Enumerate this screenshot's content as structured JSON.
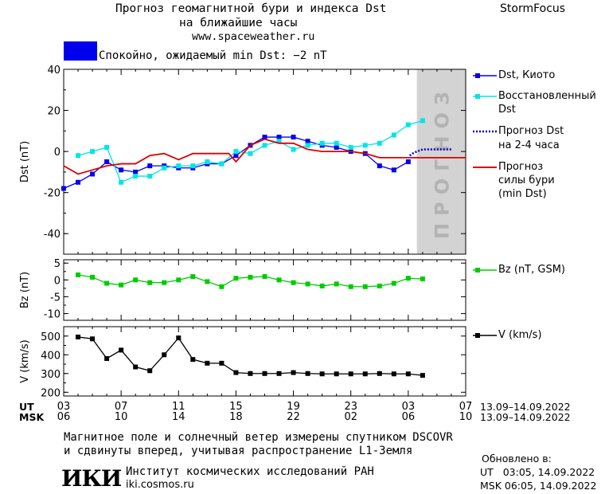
{
  "header": {
    "title_line1": "Прогноз геомагнитной бури и индекса Dst",
    "title_line2": "на ближайшие часы",
    "site": "www.spaceweather.ru",
    "brand": "StormFocus"
  },
  "status": {
    "text": "Спокойно, ожидаемый min Dst: −2 nT",
    "color": "#0000ee"
  },
  "forecast_label": "ПРОГНОЗ",
  "legend": {
    "dst_kyoto": "Dst, Киото",
    "restored_1": "Восстановленный",
    "restored_2": "Dst",
    "forecast_dst_1": "Прогноз Dst",
    "forecast_dst_2": "на 2-4 часа",
    "storm_1": "Прогноз",
    "storm_2": "силы бури",
    "storm_3": "(min Dst)",
    "bz": "Bz (nT, GSM)",
    "v": "V (km/s)"
  },
  "axis_time": {
    "ut_label": "UT",
    "msk_label": "MSK",
    "ut_ticks": [
      "03",
      "07",
      "11",
      "15",
      "19",
      "23",
      "03",
      "07"
    ],
    "msk_ticks": [
      "06",
      "10",
      "14",
      "18",
      "22",
      "02",
      "06",
      "10"
    ],
    "ut_range": "13.09–14.09.2022",
    "msk_range": "13.09–14.09.2022"
  },
  "footer": {
    "note_1": "Магнитное поле и солнечный ветер измерены спутником DSCOVR",
    "note_2": "и сдвинуты вперед, учитывая распространение L1-Земля",
    "logo": "ИКИ",
    "institute": "Институт космических исследований РАН",
    "institute_url": "iki.cosmos.ru",
    "updated_label": "Обновлено в:",
    "updated_ut": "UT   03:05, 14.09.2022",
    "updated_msk": "MSK 06:05, 14.09.2022"
  },
  "chart_data": [
    {
      "type": "line",
      "ylabel": "Dst (nT)",
      "ylim": [
        -50,
        40
      ],
      "yticks": [
        40,
        20,
        0,
        -20,
        -40
      ],
      "xlim": [
        3,
        31
      ],
      "forecast_region": [
        27.6,
        31
      ],
      "colors": {
        "kyoto": "#0000ee",
        "restored": "#00e5e5",
        "forecast": "#0000cc",
        "storm": "#dd0000"
      },
      "series": [
        {
          "name": "Dst, Киото",
          "x": [
            3,
            4,
            5,
            6,
            7,
            8,
            9,
            10,
            11,
            12,
            13,
            14,
            15,
            16,
            17,
            18,
            19,
            20,
            21,
            22,
            23,
            24,
            25,
            26,
            27
          ],
          "values": [
            -18,
            -15,
            -11,
            -5,
            -9,
            -10,
            -7,
            -7,
            -8,
            -8,
            -6,
            -6,
            -2,
            3,
            7,
            7,
            7,
            5,
            3,
            2,
            0,
            -1,
            -7,
            -9,
            -5
          ]
        },
        {
          "name": "Восстановленный Dst",
          "x": [
            4,
            5,
            6,
            7,
            8,
            9,
            10,
            11,
            12,
            13,
            14,
            15,
            16,
            17,
            18,
            19,
            20,
            21,
            22,
            23,
            24,
            25,
            26,
            27,
            28
          ],
          "values": [
            -2,
            0,
            2,
            -15,
            -12,
            -12,
            -8,
            -7,
            -7,
            -5,
            -6,
            0,
            -1,
            3,
            5,
            1,
            3,
            4,
            4,
            2,
            3,
            4,
            8,
            13,
            15
          ]
        },
        {
          "name": "Прогноз Dst на 2-4 часа",
          "x": [
            27.1,
            27.3,
            27.6,
            28,
            29,
            30
          ],
          "values": [
            -2,
            -1,
            0,
            1,
            1,
            1
          ]
        },
        {
          "name": "Прогноз силы бури (min Dst)",
          "x": [
            3,
            4,
            5,
            6,
            7,
            8,
            9,
            10,
            11,
            12,
            13,
            14,
            14.5,
            15,
            16,
            17,
            18,
            19,
            20,
            21,
            22,
            23,
            24,
            25,
            26,
            27,
            28,
            29,
            30,
            31
          ],
          "values": [
            -7,
            -11,
            -9,
            -7,
            -6,
            -6,
            -2,
            -1,
            -4,
            -1,
            -1,
            -1,
            -1,
            -5,
            3,
            6,
            4,
            4,
            1,
            0,
            0,
            0,
            -1,
            -3,
            -3,
            -3,
            -3,
            -3,
            -3,
            -3
          ]
        }
      ]
    },
    {
      "type": "line",
      "ylabel": "Bz (nT)",
      "ylim": [
        -12,
        6
      ],
      "yticks": [
        5,
        0,
        -5,
        -10
      ],
      "xlim": [
        3,
        31
      ],
      "series": [
        {
          "name": "Bz (nT, GSM)",
          "color": "#00cc00",
          "x": [
            4,
            5,
            6,
            7,
            8,
            9,
            10,
            11,
            12,
            13,
            14,
            15,
            16,
            17,
            18,
            19,
            20,
            21,
            22,
            23,
            24,
            25,
            26,
            27,
            28
          ],
          "values": [
            1.5,
            0.8,
            -1.0,
            -1.5,
            0.0,
            -0.8,
            -0.8,
            0.0,
            1.0,
            -0.5,
            -2.0,
            0.5,
            0.8,
            1.0,
            0.0,
            -0.8,
            -1.2,
            -1.8,
            -1.2,
            -2.0,
            -2.0,
            -1.8,
            -1.0,
            0.5,
            0.3
          ]
        }
      ]
    },
    {
      "type": "line",
      "ylabel": "V (km/s)",
      "ylim": [
        180,
        550
      ],
      "yticks": [
        500,
        400,
        300,
        200
      ],
      "xlim": [
        3,
        31
      ],
      "series": [
        {
          "name": "V (km/s)",
          "color": "#000000",
          "x": [
            4,
            5,
            6,
            7,
            8,
            9,
            10,
            11,
            12,
            13,
            14,
            15,
            16,
            17,
            18,
            19,
            20,
            21,
            22,
            23,
            24,
            25,
            26,
            27,
            28
          ],
          "values": [
            495,
            485,
            380,
            425,
            335,
            315,
            400,
            490,
            375,
            355,
            355,
            305,
            300,
            300,
            300,
            305,
            300,
            298,
            298,
            298,
            298,
            300,
            298,
            298,
            290
          ]
        }
      ]
    }
  ]
}
